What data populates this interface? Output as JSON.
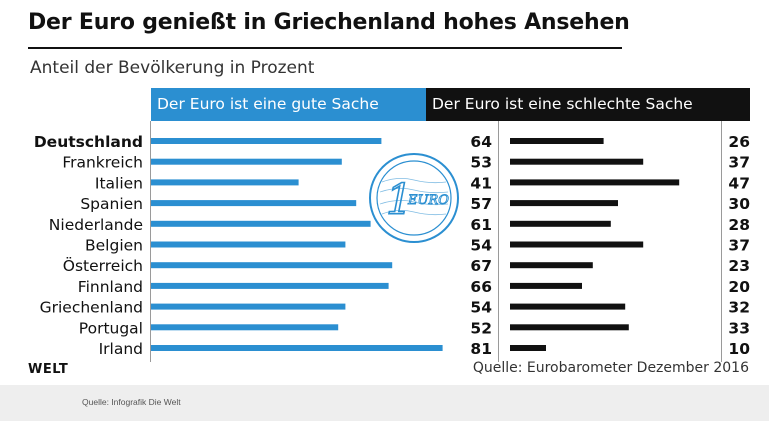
{
  "chart_data": {
    "type": "bar",
    "title": "Der Euro genießt in Griechenland hohes Ansehen",
    "subtitle": "Anteil der Bevölkerung in Prozent",
    "categories": [
      "Deutschland",
      "Frankreich",
      "Italien",
      "Spanien",
      "Niederlande",
      "Belgien",
      "Österreich",
      "Finnland",
      "Griechenland",
      "Portugal",
      "Irland"
    ],
    "highlight_category": "Deutschland",
    "series": [
      {
        "name": "Der Euro ist eine gute Sache",
        "values": [
          64,
          53,
          41,
          57,
          61,
          54,
          67,
          66,
          54,
          52,
          81
        ],
        "color": "#2b8fd1"
      },
      {
        "name": "Der Euro ist eine schlechte Sache",
        "values": [
          26,
          37,
          47,
          30,
          28,
          37,
          23,
          20,
          32,
          33,
          10
        ],
        "color": "#111111"
      }
    ],
    "xlim": [
      0,
      100
    ],
    "grid": false,
    "legend": "top"
  },
  "coin": {
    "denomination": "1",
    "word": "EURO"
  },
  "footer": {
    "logo": "WELT",
    "source": "Quelle: Eurobarometer Dezember 2016",
    "credit": "Quelle: Infografik Die Welt"
  }
}
